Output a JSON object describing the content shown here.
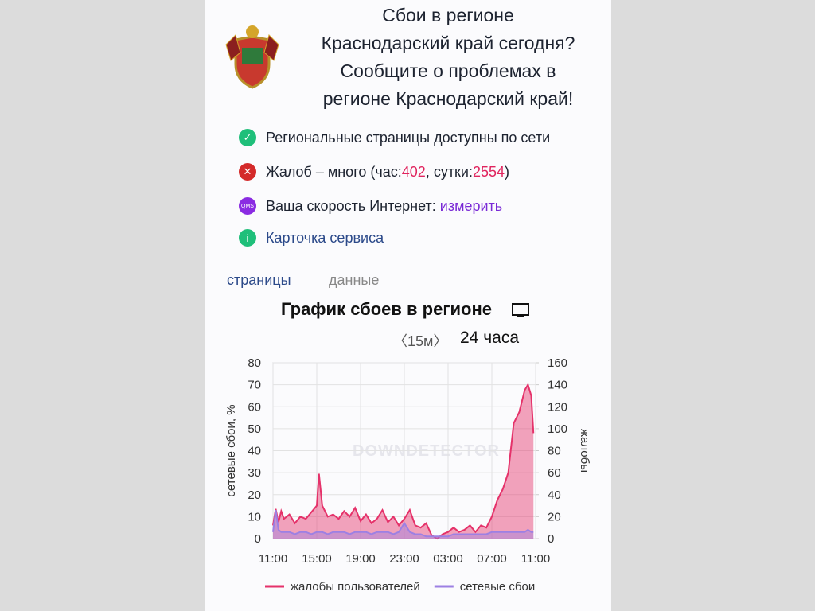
{
  "header": {
    "title_lines": [
      "Сбои в регионе",
      "Краснодарский край сегодня?",
      "Сообщите о проблемах в",
      "регионе Краснодарский край!"
    ]
  },
  "status": {
    "pages": "Региональные страницы доступны по сети",
    "complaints": {
      "before": "Жалоб – много (час: ",
      "hour": 402,
      "middle": ", сутки: ",
      "day": 2554,
      "after": ")"
    },
    "speed": {
      "text": "Ваша скорость Интернет: ",
      "link": "измерить",
      "icon": "QMS"
    },
    "card": "Карточка сервиса"
  },
  "tabs": [
    "страницы",
    "данные"
  ],
  "chart_heading": "График сбоев в регионе",
  "controls": {
    "interval": "〈15м〉",
    "range": "24 часа"
  },
  "chart_data": {
    "type": "line",
    "watermark": "DOWNDETECTOR",
    "y_label": "сетевые сбои, %",
    "y2_label": "жалобы",
    "x": [
      0,
      0.25,
      0.5,
      0.75,
      1,
      1.5,
      2,
      2.5,
      3,
      3.5,
      4,
      4.2,
      4.5,
      5,
      5.5,
      6,
      6.5,
      7,
      7.5,
      8,
      8.5,
      9,
      9.5,
      10,
      10.5,
      11,
      11.5,
      12,
      12.5,
      13,
      13.5,
      14,
      14.5,
      15,
      15.5,
      16,
      16.5,
      17,
      17.5,
      18,
      18.5,
      19,
      19.5,
      20,
      20.5,
      21,
      21.5,
      22,
      22.5,
      23,
      23.3,
      23.6,
      23.8
    ],
    "xlim": [
      0,
      24
    ],
    "xticks": [
      {
        "value": 0,
        "label": "11:00"
      },
      {
        "value": 4,
        "label": "15:00"
      },
      {
        "value": 8,
        "label": "19:00"
      },
      {
        "value": 12,
        "label": "23:00"
      },
      {
        "value": 16,
        "label": "03:00"
      },
      {
        "value": 20,
        "label": "07:00"
      },
      {
        "value": 24,
        "label": "11:00"
      }
    ],
    "ylim": [
      0,
      80
    ],
    "yticks": [
      0,
      10,
      20,
      30,
      40,
      50,
      60,
      70,
      80
    ],
    "y2lim": [
      0,
      160
    ],
    "y2ticks": [
      0,
      20,
      40,
      60,
      80,
      100,
      120,
      140,
      160
    ],
    "grid": true,
    "series": [
      {
        "name": "жалобы пользователей",
        "color": "#e5326a",
        "axis": "y2",
        "values": [
          12,
          27,
          15,
          25,
          18,
          22,
          14,
          20,
          18,
          24,
          30,
          59,
          30,
          20,
          22,
          18,
          25,
          20,
          28,
          16,
          22,
          14,
          18,
          26,
          15,
          20,
          12,
          18,
          26,
          12,
          10,
          14,
          3,
          0,
          4,
          6,
          10,
          6,
          8,
          12,
          6,
          12,
          10,
          20,
          35,
          45,
          60,
          105,
          115,
          135,
          140,
          130,
          96
        ]
      },
      {
        "name": "сетевые сбои",
        "color": "#9d80e3",
        "values": [
          3,
          13,
          4,
          3,
          3,
          3,
          2,
          3,
          3,
          2,
          3,
          3,
          3,
          2,
          3,
          3,
          3,
          2,
          3,
          3,
          3,
          2,
          3,
          3,
          3,
          2,
          3,
          7,
          3,
          2,
          2,
          1,
          1,
          1,
          1,
          1,
          2,
          2,
          2,
          2,
          2,
          2,
          2,
          3,
          3,
          3,
          3,
          3,
          3,
          3,
          4,
          3,
          3
        ]
      }
    ]
  }
}
